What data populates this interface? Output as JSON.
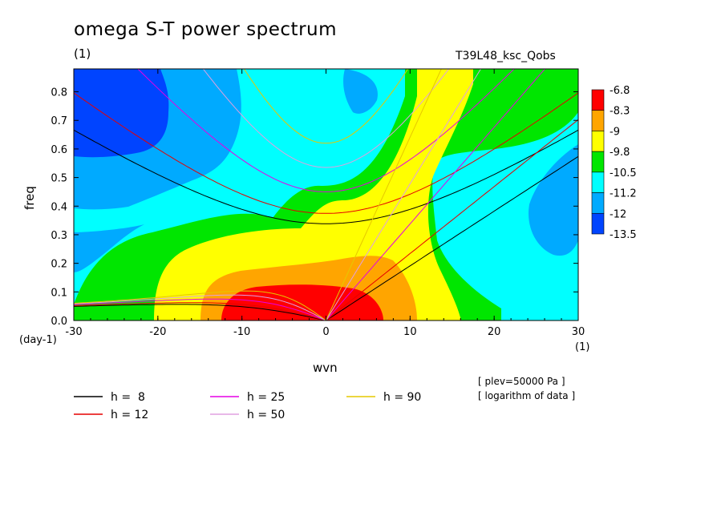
{
  "title": "omega S-T power spectrum",
  "units_left": "(1)",
  "run_label": "T39L48_ksc_Qobs",
  "notes": [
    "[ plev=50000 Pa ]",
    "[ logarithm of data ]"
  ],
  "chart_data": {
    "type": "heatmap",
    "xlabel": "wvn",
    "ylabel": "freq",
    "x_units": "(1)",
    "y_units": "(day-1)",
    "xlim": [
      -30,
      30
    ],
    "ylim": [
      0.0,
      0.88
    ],
    "xticks": [
      "-30",
      "-20",
      "-10",
      "0",
      "10",
      "20",
      "30"
    ],
    "yticks": [
      "0.0",
      "0.1",
      "0.2",
      "0.3",
      "0.4",
      "0.5",
      "0.6",
      "0.7",
      "0.8"
    ],
    "colorbar": {
      "labels": [
        "-6.8",
        "-8.3",
        "-9",
        "-9.8",
        "-10.5",
        "-11.2",
        "-12",
        "-13.5"
      ],
      "colors": [
        "#ff0000",
        "#ffa500",
        "#ffff00",
        "#00e600",
        "#00ffff",
        "#00aaff",
        "#0044ff"
      ]
    },
    "dispersion_legend": [
      {
        "label": "h =  8",
        "color": "#000000"
      },
      {
        "label": "h = 12",
        "color": "#e60000"
      },
      {
        "label": "h = 25",
        "color": "#e600e6"
      },
      {
        "label": "h = 50",
        "color": "#e0a0e0"
      },
      {
        "label": "h = 90",
        "color": "#e6c800"
      }
    ]
  }
}
